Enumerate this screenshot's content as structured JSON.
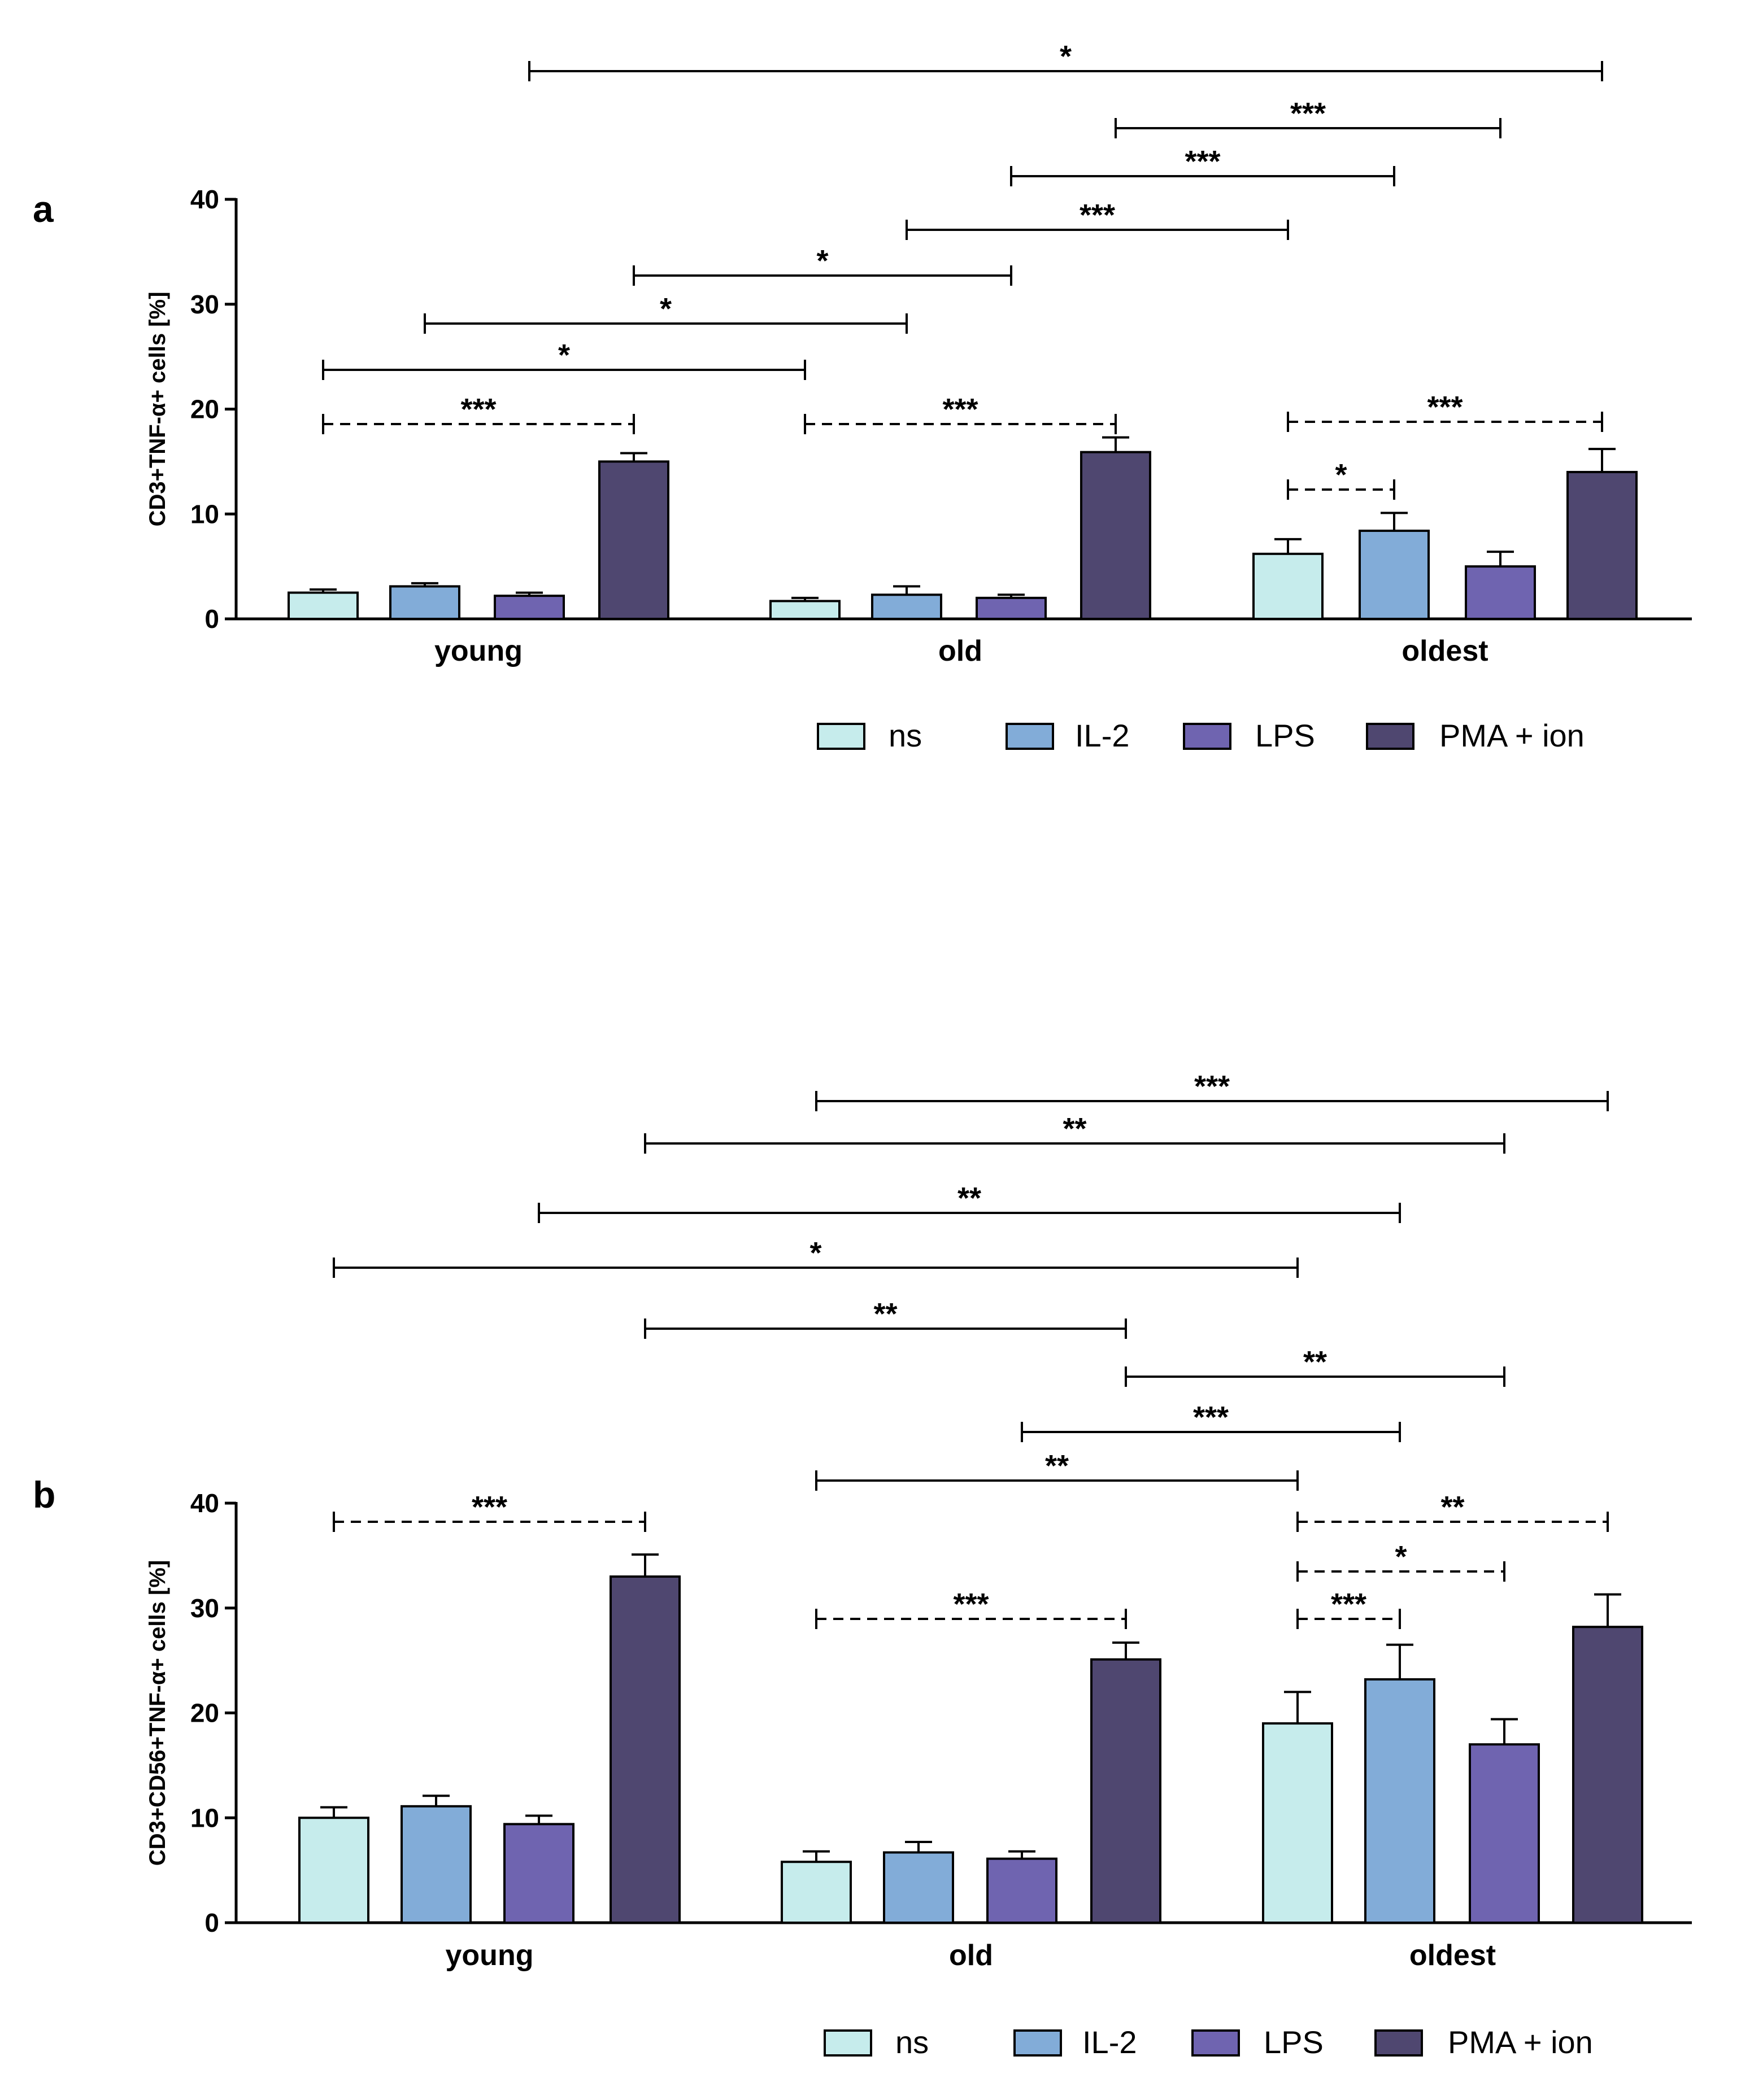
{
  "colors": {
    "ns": "#c6ecec",
    "IL-2": "#82acd8",
    "LPS": "#6f64b0",
    "PMA + ion": "#4f4770",
    "axis": "#000000"
  },
  "chart_data": [
    {
      "type": "bar",
      "panel_label": "a",
      "title": "",
      "xlabel": "",
      "ylabel": "CD3+TNF-α+ cells [%]",
      "ylim": [
        0,
        40
      ],
      "yticks": [
        "0",
        "10",
        "20",
        "30",
        "40"
      ],
      "categories": [
        "young",
        "old",
        "oldest"
      ],
      "series": [
        {
          "name": "ns",
          "values": [
            2.5,
            1.7,
            6.2
          ],
          "errors": [
            0.3,
            0.3,
            1.4
          ]
        },
        {
          "name": "IL-2",
          "values": [
            3.1,
            2.3,
            8.4
          ],
          "errors": [
            0.3,
            0.8,
            1.7
          ]
        },
        {
          "name": "LPS",
          "values": [
            2.2,
            2.0,
            5.0
          ],
          "errors": [
            0.3,
            0.3,
            1.4
          ]
        },
        {
          "name": "PMA + ion",
          "values": [
            15.0,
            15.9,
            14.0
          ],
          "errors": [
            0.8,
            1.4,
            2.2
          ]
        }
      ],
      "legend": {
        "entries": [
          "ns",
          "IL-2",
          "LPS",
          "PMA + ion"
        ],
        "placement": "bottom-right"
      },
      "significance": [
        {
          "label": "*",
          "from": [
            "young",
            "LPS"
          ],
          "to": [
            "oldest",
            "PMA + ion"
          ],
          "style": "solid"
        },
        {
          "label": "***",
          "from": [
            "old",
            "PMA + ion"
          ],
          "to": [
            "oldest",
            "LPS"
          ],
          "style": "solid"
        },
        {
          "label": "***",
          "from": [
            "old",
            "LPS"
          ],
          "to": [
            "oldest",
            "IL-2"
          ],
          "style": "solid"
        },
        {
          "label": "***",
          "from": [
            "old",
            "IL-2"
          ],
          "to": [
            "oldest",
            "ns"
          ],
          "style": "solid"
        },
        {
          "label": "*",
          "from": [
            "young",
            "PMA + ion"
          ],
          "to": [
            "old",
            "LPS"
          ],
          "style": "solid"
        },
        {
          "label": "*",
          "from": [
            "young",
            "IL-2"
          ],
          "to": [
            "old",
            "IL-2"
          ],
          "style": "solid"
        },
        {
          "label": "*",
          "from": [
            "young",
            "ns"
          ],
          "to": [
            "old",
            "ns"
          ],
          "style": "solid"
        },
        {
          "label": "***",
          "from": [
            "young",
            "ns"
          ],
          "to": [
            "young",
            "PMA + ion"
          ],
          "style": "dashed"
        },
        {
          "label": "***",
          "from": [
            "old",
            "ns"
          ],
          "to": [
            "old",
            "PMA + ion"
          ],
          "style": "dashed"
        },
        {
          "label": "***",
          "from": [
            "oldest",
            "ns"
          ],
          "to": [
            "oldest",
            "PMA + ion"
          ],
          "style": "dashed"
        },
        {
          "label": "*",
          "from": [
            "oldest",
            "ns"
          ],
          "to": [
            "oldest",
            "IL-2"
          ],
          "style": "dashed"
        }
      ]
    },
    {
      "type": "bar",
      "panel_label": "b",
      "title": "",
      "xlabel": "",
      "ylabel": "CD3+CD56+TNF-α+ cells [%]",
      "ylim": [
        0,
        40
      ],
      "yticks": [
        "0",
        "10",
        "20",
        "30",
        "40"
      ],
      "categories": [
        "young",
        "old",
        "oldest"
      ],
      "series": [
        {
          "name": "ns",
          "values": [
            10.0,
            5.8,
            19.0
          ],
          "errors": [
            1.0,
            1.0,
            3.0
          ]
        },
        {
          "name": "IL-2",
          "values": [
            11.1,
            6.7,
            23.2
          ],
          "errors": [
            1.0,
            1.0,
            3.3
          ]
        },
        {
          "name": "LPS",
          "values": [
            9.4,
            6.1,
            17.0
          ],
          "errors": [
            0.8,
            0.7,
            2.4
          ]
        },
        {
          "name": "PMA + ion",
          "values": [
            33.0,
            25.1,
            28.2
          ],
          "errors": [
            2.1,
            1.6,
            3.1
          ]
        }
      ],
      "legend": {
        "entries": [
          "ns",
          "IL-2",
          "LPS",
          "PMA + ion"
        ],
        "placement": "bottom-right"
      },
      "significance": [
        {
          "label": "***",
          "from": [
            "old",
            "ns"
          ],
          "to": [
            "oldest",
            "PMA + ion"
          ],
          "style": "solid"
        },
        {
          "label": "**",
          "from": [
            "young",
            "PMA + ion"
          ],
          "to": [
            "oldest",
            "LPS"
          ],
          "style": "solid"
        },
        {
          "label": "**",
          "from": [
            "young",
            "LPS"
          ],
          "to": [
            "oldest",
            "IL-2"
          ],
          "style": "solid"
        },
        {
          "label": "*",
          "from": [
            "young",
            "ns"
          ],
          "to": [
            "oldest",
            "ns"
          ],
          "style": "solid"
        },
        {
          "label": "**",
          "from": [
            "young",
            "PMA + ion"
          ],
          "to": [
            "old",
            "PMA + ion"
          ],
          "style": "solid"
        },
        {
          "label": "**",
          "from": [
            "old",
            "PMA + ion"
          ],
          "to": [
            "oldest",
            "LPS"
          ],
          "style": "solid"
        },
        {
          "label": "***",
          "from": [
            "old",
            "LPS"
          ],
          "to": [
            "oldest",
            "IL-2"
          ],
          "style": "solid"
        },
        {
          "label": "**",
          "from": [
            "old",
            "ns"
          ],
          "to": [
            "oldest",
            "ns"
          ],
          "style": "solid"
        },
        {
          "label": "***",
          "from": [
            "young",
            "ns"
          ],
          "to": [
            "young",
            "PMA + ion"
          ],
          "style": "dashed"
        },
        {
          "label": "***",
          "from": [
            "old",
            "ns"
          ],
          "to": [
            "old",
            "PMA + ion"
          ],
          "style": "dashed"
        },
        {
          "label": "**",
          "from": [
            "oldest",
            "ns"
          ],
          "to": [
            "oldest",
            "PMA + ion"
          ],
          "style": "dashed"
        },
        {
          "label": "*",
          "from": [
            "oldest",
            "ns"
          ],
          "to": [
            "oldest",
            "LPS"
          ],
          "style": "dashed"
        },
        {
          "label": "***",
          "from": [
            "oldest",
            "ns"
          ],
          "to": [
            "oldest",
            "IL-2"
          ],
          "style": "dashed"
        }
      ]
    }
  ]
}
